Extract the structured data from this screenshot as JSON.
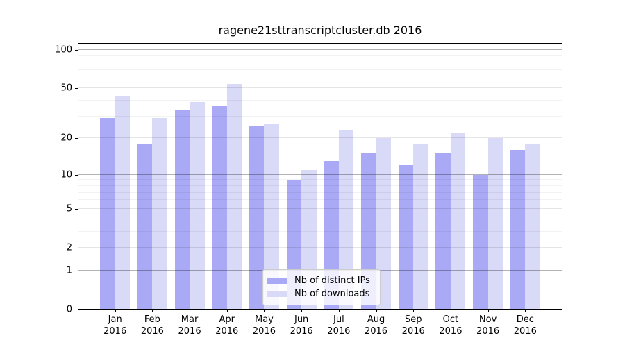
{
  "title": "ragene21sttranscriptcluster.db 2016",
  "legend": {
    "items": [
      {
        "label": "Nb of distinct IPs",
        "series_key": "distinct_ips"
      },
      {
        "label": "Nb of downloads",
        "series_key": "downloads"
      }
    ]
  },
  "colors": {
    "distinct_ips": "#a9a9f5",
    "downloads": "#d9d9f8",
    "grid_pow10": "rgba(0,0,0,0.30)",
    "grid_major": "rgba(0,0,0,0.10)",
    "grid_minor": "rgba(0,0,0,0.05)",
    "axis": "#000000"
  },
  "y_axis": {
    "scale": "log1p",
    "tick_values": [
      100,
      50,
      20,
      10,
      5,
      2,
      1,
      0
    ],
    "minor_gridlines": [
      3,
      4,
      6,
      7,
      8,
      9,
      30,
      40,
      60,
      70,
      80,
      90
    ]
  },
  "x_axis": {
    "labels": [
      {
        "month": "Jan",
        "year": "2016"
      },
      {
        "month": "Feb",
        "year": "2016"
      },
      {
        "month": "Mar",
        "year": "2016"
      },
      {
        "month": "Apr",
        "year": "2016"
      },
      {
        "month": "May",
        "year": "2016"
      },
      {
        "month": "Jun",
        "year": "2016"
      },
      {
        "month": "Jul",
        "year": "2016"
      },
      {
        "month": "Aug",
        "year": "2016"
      },
      {
        "month": "Sep",
        "year": "2016"
      },
      {
        "month": "Oct",
        "year": "2016"
      },
      {
        "month": "Nov",
        "year": "2016"
      },
      {
        "month": "Dec",
        "year": "2016"
      }
    ]
  },
  "chart_data": {
    "type": "bar",
    "title": "ragene21sttranscriptcluster.db 2016",
    "categories": [
      "Jan 2016",
      "Feb 2016",
      "Mar 2016",
      "Apr 2016",
      "May 2016",
      "Jun 2016",
      "Jul 2016",
      "Aug 2016",
      "Sep 2016",
      "Oct 2016",
      "Nov 2016",
      "Dec 2016"
    ],
    "series": [
      {
        "name": "Nb of distinct IPs",
        "key": "distinct_ips",
        "values": [
          29,
          18,
          34,
          36,
          25,
          9,
          13,
          15,
          12,
          15,
          10,
          16
        ]
      },
      {
        "name": "Nb of downloads",
        "key": "downloads",
        "values": [
          43,
          29,
          39,
          54,
          26,
          11,
          23,
          20,
          18,
          22,
          20,
          18
        ]
      }
    ],
    "xlabel": "",
    "ylabel": "",
    "yscale": "log1p",
    "ylim": [
      0,
      113
    ],
    "yticks": [
      0,
      1,
      2,
      5,
      10,
      20,
      50,
      100
    ],
    "grid": true,
    "legend_position": "lower center inside"
  }
}
